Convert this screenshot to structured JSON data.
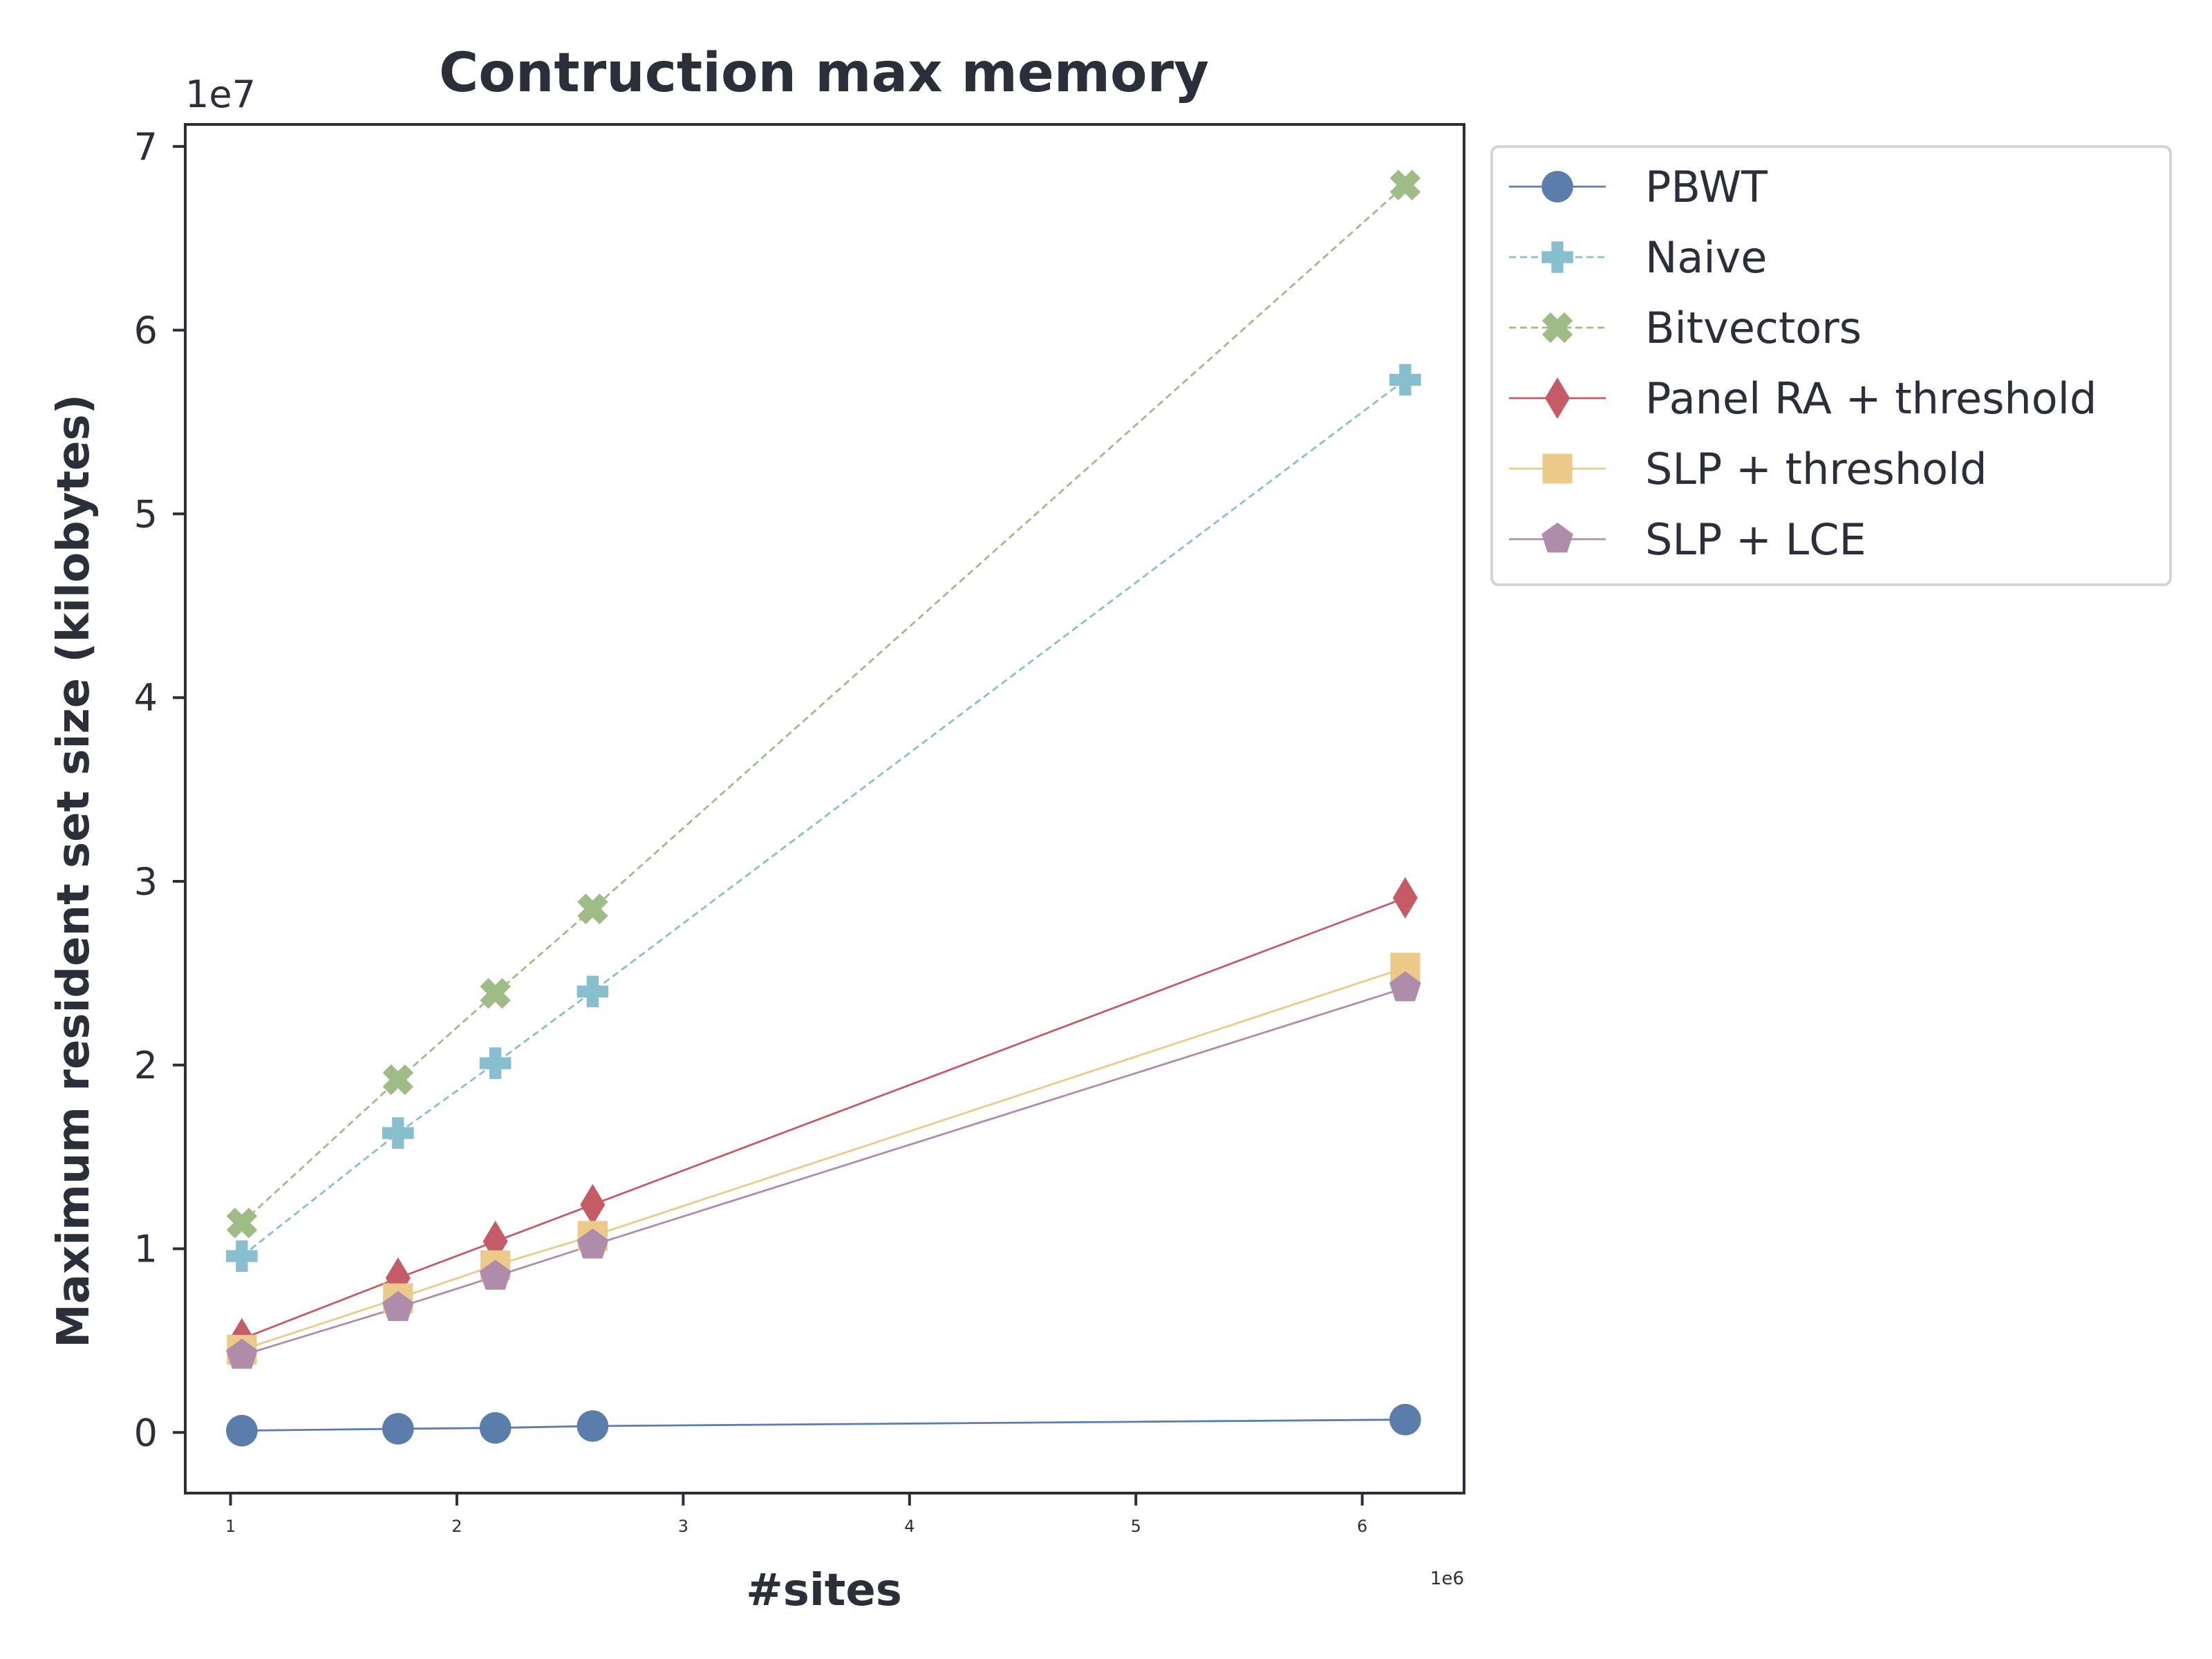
{
  "chart_data": {
    "type": "line",
    "title": "Contruction max memory",
    "xlabel": "#sites",
    "ylabel": "Maximum resident set size (kilobytes)",
    "x_multiplier_label": "1e6",
    "y_multiplier_label": "1e7",
    "xlim": [
      0.8,
      6.45
    ],
    "ylim": [
      -3.3,
      71.2
    ],
    "xticks": [
      1,
      2,
      3,
      4,
      5,
      6
    ],
    "xtick_labels": [
      "1",
      "2",
      "3",
      "4",
      "5",
      "6"
    ],
    "yticks": [
      0,
      10,
      20,
      30,
      40,
      50,
      60,
      70
    ],
    "ytick_labels": [
      "0",
      "1",
      "2",
      "3",
      "4",
      "5",
      "6",
      "7"
    ],
    "x": [
      1.05,
      1.74,
      2.17,
      2.6,
      6.19
    ],
    "y_units": "1e6 kilobytes (axis shown in 1e7)",
    "legend_position": "outside-right-top",
    "grid": false,
    "series": [
      {
        "name": "PBWT",
        "color": "#5a7dab",
        "marker": "circle",
        "dash": "solid",
        "values": [
          0.1,
          0.2,
          0.25,
          0.35,
          0.7
        ]
      },
      {
        "name": "Naive",
        "color": "#88bfcf",
        "marker": "plus",
        "dash": "dashed",
        "values": [
          9.6,
          16.3,
          20.1,
          24.0,
          57.3
        ]
      },
      {
        "name": "Bitvectors",
        "color": "#9fbc86",
        "marker": "x",
        "dash": "dashed",
        "values": [
          11.4,
          19.2,
          23.9,
          28.5,
          67.9
        ]
      },
      {
        "name": "Panel RA + threshold",
        "color": "#c55c65",
        "marker": "diamond",
        "dash": "solid",
        "values": [
          5.1,
          8.4,
          10.4,
          12.4,
          29.1
        ]
      },
      {
        "name": "SLP + threshold",
        "color": "#eccb8a",
        "marker": "square",
        "dash": "solid",
        "values": [
          4.5,
          7.3,
          9.1,
          10.7,
          25.3
        ]
      },
      {
        "name": "SLP + LCE",
        "color": "#b08cab",
        "marker": "pentagon",
        "dash": "solid",
        "values": [
          4.2,
          6.8,
          8.5,
          10.2,
          24.2
        ]
      }
    ]
  }
}
